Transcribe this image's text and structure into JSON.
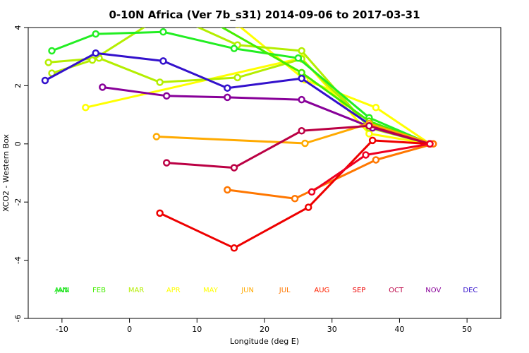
{
  "chart_data": {
    "type": "line",
    "title": "0-10N Africa (Ver 7b_s31)   2014-09-06 to 2017-03-31",
    "xlabel": "Longitude (deg E)",
    "ylabel": "XCO2 - Western Box",
    "xlim": [
      -15,
      55
    ],
    "ylim": [
      -6,
      4
    ],
    "xticks": [
      -10,
      0,
      10,
      20,
      30,
      40,
      50
    ],
    "yticks": [
      -6,
      -4,
      -2,
      0,
      2,
      4
    ],
    "grid": false,
    "legend_position": "bottom",
    "month_labels": [
      {
        "label": "JAN",
        "color": "#00d000",
        "x": -10
      },
      {
        "label": "FEB",
        "color": "#44ee00",
        "x": -4.5
      },
      {
        "label": "MAR",
        "color": "#b4ee00",
        "x": 1
      },
      {
        "label": "APR",
        "color": "#ffff00",
        "x": 6.5
      },
      {
        "label": "MAY",
        "color": "#ffff00",
        "x": 12
      },
      {
        "label": "JUN",
        "color": "#ffaa00",
        "x": 17.5
      },
      {
        "label": "JUL",
        "color": "#ff7700",
        "x": 23
      },
      {
        "label": "AUG",
        "color": "#ff2200",
        "x": 28.5
      },
      {
        "label": "SEP",
        "color": "#ee0000",
        "x": 34
      },
      {
        "label": "OCT",
        "color": "#bb0044",
        "x": 39.5
      },
      {
        "label": "NOV",
        "color": "#880099",
        "x": 45
      },
      {
        "label": "DEC",
        "color": "#3311cc",
        "x": 50.5
      },
      {
        "label": "ANN",
        "color": "#22ee22",
        "x": -10
      }
    ],
    "series": [
      {
        "color": "#ffff00",
        "points": [
          [
            6,
            4.8
          ],
          [
            16,
            4.1
          ],
          [
            26,
            2.2
          ],
          [
            36.5,
            1.25
          ],
          [
            44.5,
            0
          ]
        ]
      },
      {
        "color": "#ffff00",
        "points": [
          [
            -6.5,
            1.25
          ],
          [
            25.5,
            2.95
          ],
          [
            35.5,
            0.35
          ],
          [
            44.5,
            0
          ]
        ]
      },
      {
        "color": "#b4ee00",
        "points": [
          [
            -12,
            2.8
          ],
          [
            -4.5,
            2.95
          ],
          [
            4.5,
            2.12
          ],
          [
            16,
            2.28
          ],
          [
            25.5,
            2.92
          ],
          [
            35.5,
            0.6
          ],
          [
            44.5,
            0
          ]
        ]
      },
      {
        "color": "#b4ee00",
        "points": [
          [
            -11.5,
            2.43
          ],
          [
            -5.5,
            2.88
          ],
          [
            5.5,
            4.5
          ],
          [
            16,
            3.4
          ],
          [
            25.5,
            3.2
          ],
          [
            35.5,
            0.55
          ],
          [
            44.5,
            0
          ]
        ]
      },
      {
        "color": "#22ee22",
        "points": [
          [
            -11.5,
            3.2
          ],
          [
            -5,
            3.78
          ],
          [
            5,
            3.85
          ],
          [
            15.5,
            3.28
          ],
          [
            25,
            2.95
          ],
          [
            35.5,
            0.9
          ],
          [
            44.5,
            0
          ]
        ]
      },
      {
        "color": "#44ee00",
        "points": [
          [
            10,
            4.5
          ],
          [
            25.5,
            2.45
          ],
          [
            35.5,
            0.78
          ],
          [
            44.5,
            0
          ]
        ]
      },
      {
        "color": "#3311cc",
        "points": [
          [
            -12.5,
            2.18
          ],
          [
            -5,
            3.12
          ],
          [
            5,
            2.85
          ],
          [
            14.5,
            1.92
          ],
          [
            25.5,
            2.25
          ],
          [
            35.5,
            0.68
          ],
          [
            44.5,
            0
          ]
        ]
      },
      {
        "color": "#880099",
        "points": [
          [
            -4,
            1.95
          ],
          [
            5.5,
            1.65
          ],
          [
            14.5,
            1.6
          ],
          [
            25.5,
            1.52
          ],
          [
            36,
            0.55
          ],
          [
            44.5,
            0
          ]
        ]
      },
      {
        "color": "#ffaa00",
        "points": [
          [
            4,
            0.25
          ],
          [
            26,
            0.02
          ],
          [
            35.5,
            0.7
          ],
          [
            45,
            0
          ]
        ]
      },
      {
        "color": "#bb0044",
        "points": [
          [
            5.5,
            -0.65
          ],
          [
            15.5,
            -0.82
          ],
          [
            25.5,
            0.45
          ],
          [
            35.5,
            0.62
          ],
          [
            44.5,
            0
          ]
        ]
      },
      {
        "color": "#ff7700",
        "points": [
          [
            14.5,
            -1.58
          ],
          [
            24.5,
            -1.88
          ],
          [
            36.5,
            -0.55
          ],
          [
            45,
            0
          ]
        ]
      },
      {
        "color": "#ee0000",
        "points": [
          [
            4.5,
            -2.38
          ],
          [
            15.5,
            -3.58
          ],
          [
            26.5,
            -2.18
          ],
          [
            36,
            0.12
          ],
          [
            44.5,
            0
          ]
        ]
      },
      {
        "color": "#ee0022",
        "points": [
          [
            27,
            -1.65
          ],
          [
            35,
            -0.38
          ],
          [
            44.5,
            0
          ]
        ]
      }
    ]
  }
}
